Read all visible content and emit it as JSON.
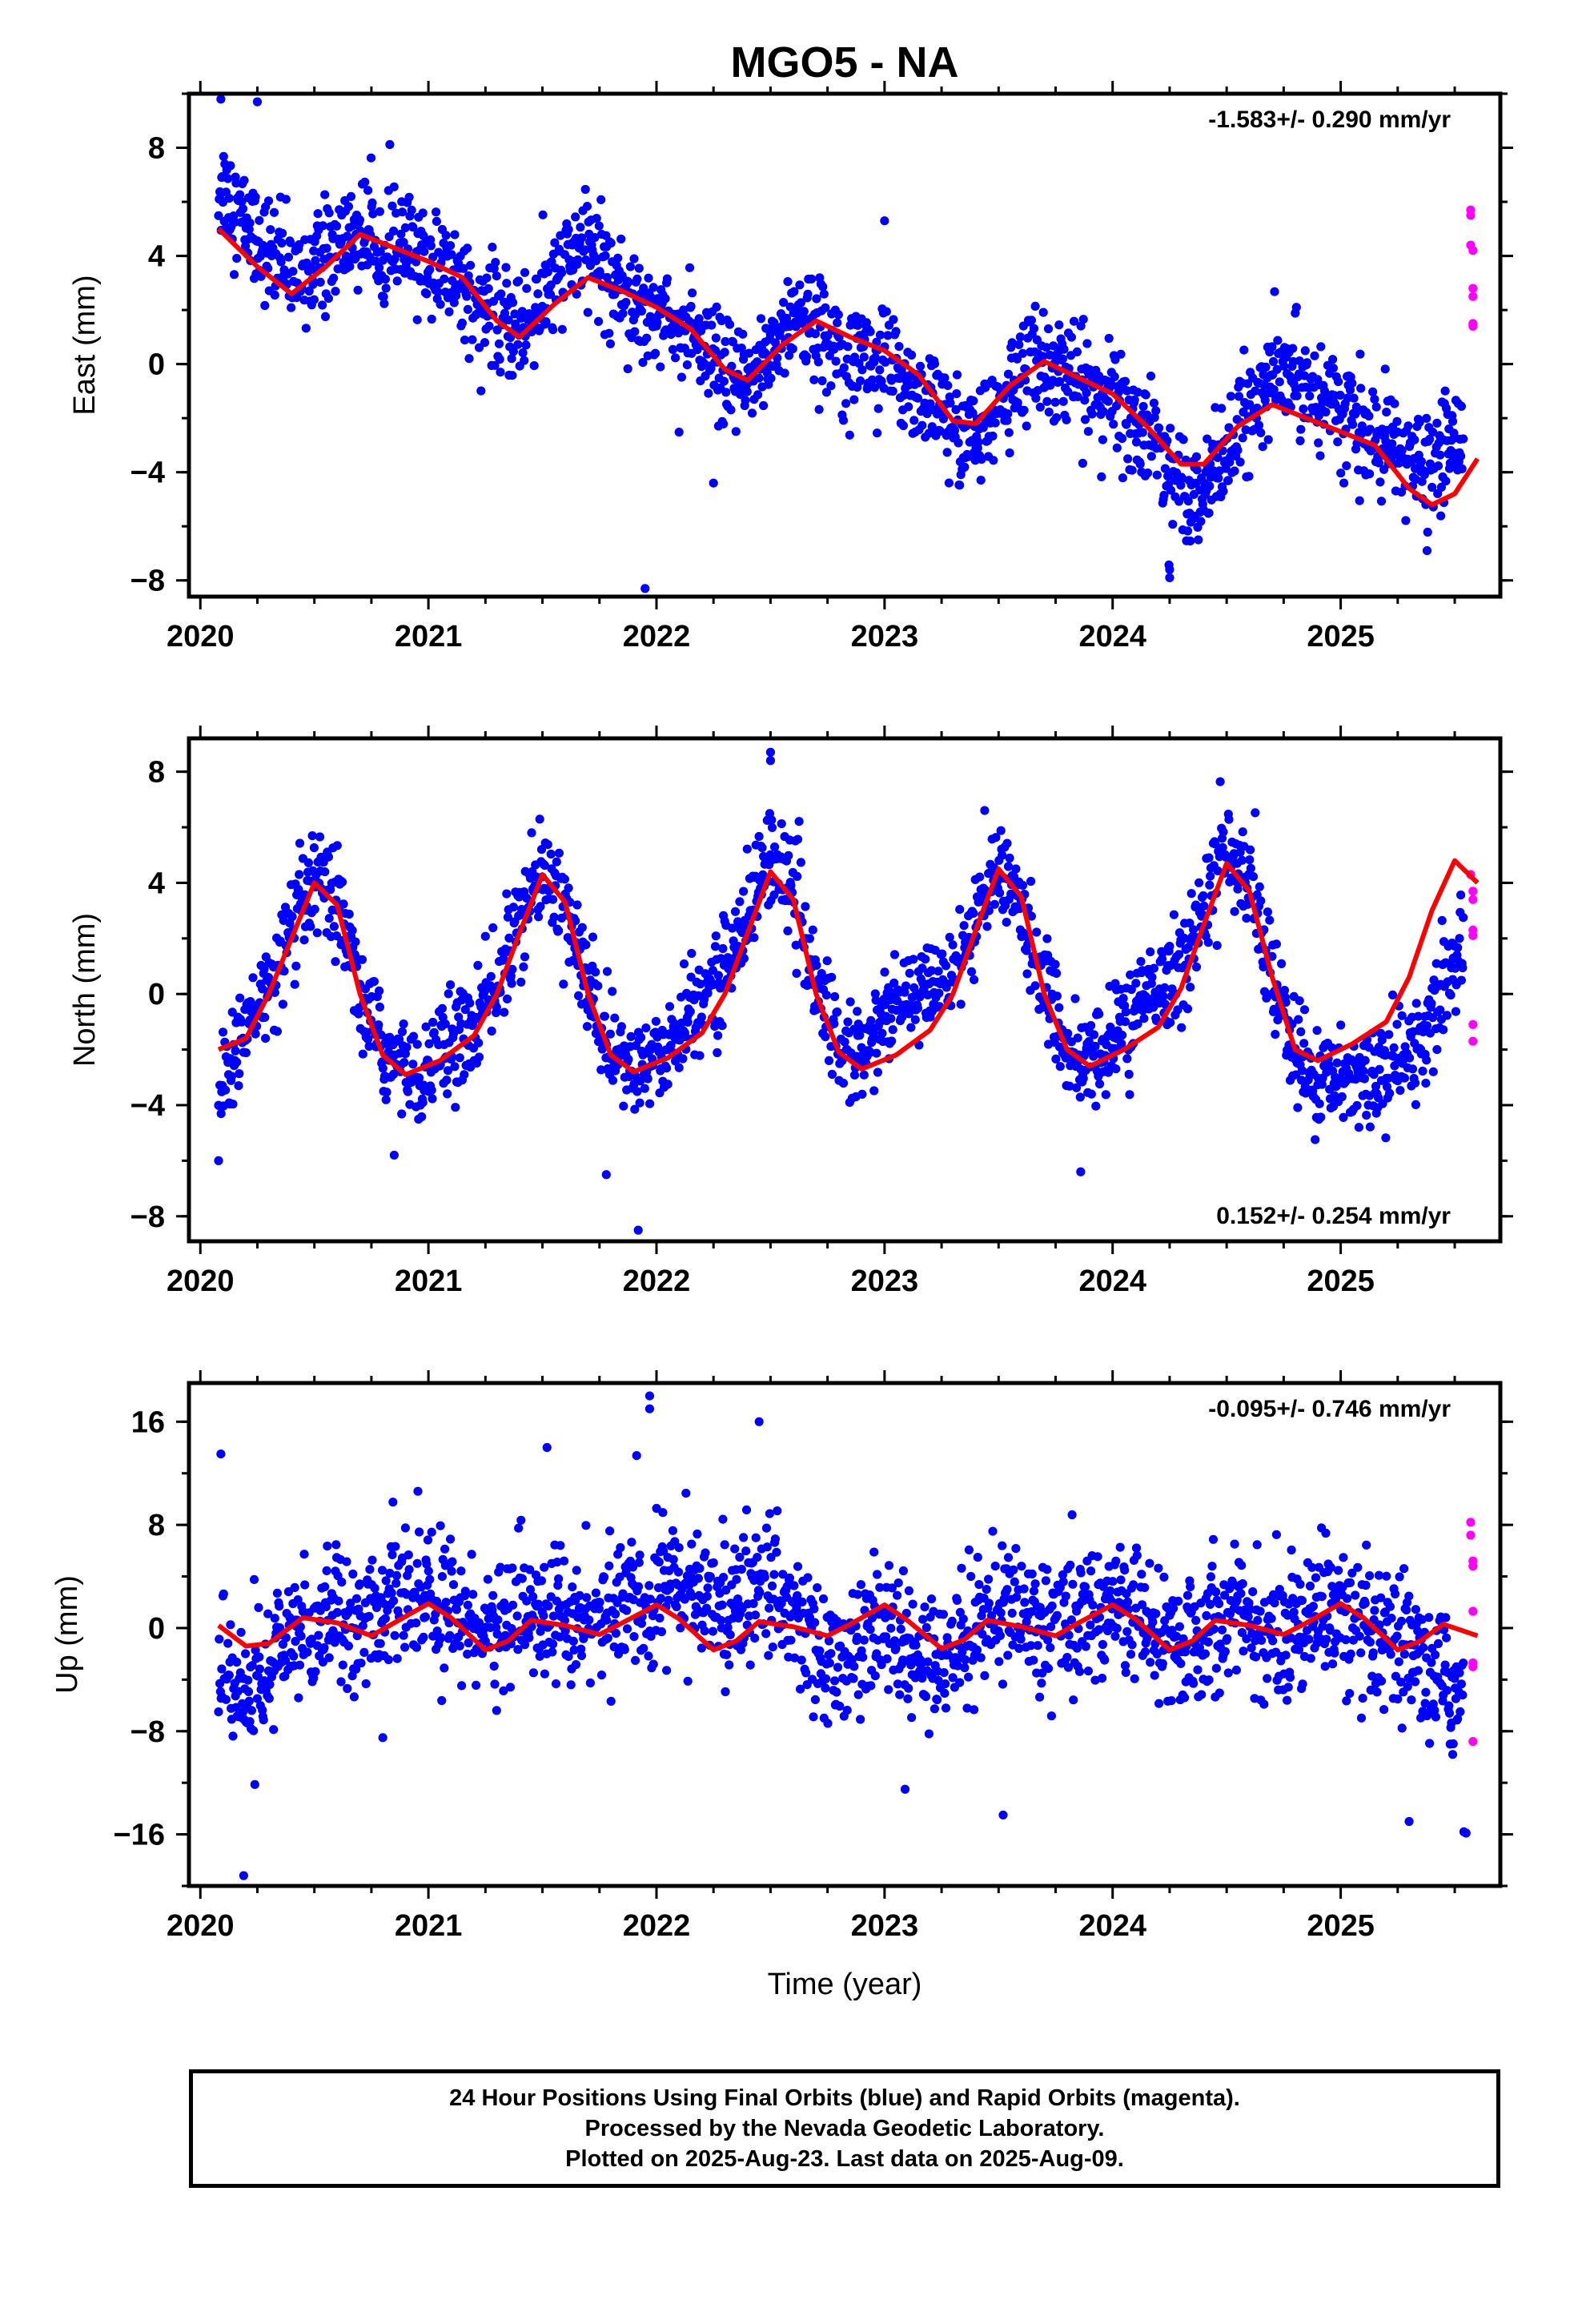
{
  "title": "MGO5 - NA",
  "xlabel": "Time (year)",
  "footer": {
    "line1": "24 Hour Positions Using Final Orbits (blue) and Rapid Orbits (magenta).",
    "line2": "Processed by the Nevada Geodetic Laboratory.",
    "line3": "Plotted on 2025-Aug-23. Last data on 2025-Aug-09."
  },
  "colors": {
    "final": "#0000ff",
    "rapid": "#ff00ff",
    "model": "#ff0000",
    "axes": "#000000"
  },
  "chart_data": [
    {
      "type": "scatter",
      "panel": "east",
      "ylabel": "East (mm)",
      "rate_label": "-1.583+/- 0.290 mm/yr",
      "rate_position": "top-right",
      "xlim": [
        2019.95,
        2025.7
      ],
      "ylim": [
        -8.6,
        10
      ],
      "x_ticks": [
        2020,
        2021,
        2022,
        2023,
        2024,
        2025
      ],
      "y_ticks": [
        -8,
        -4,
        0,
        4,
        8
      ],
      "rate_mm_per_yr": -1.583,
      "rate_sigma_mm_per_yr": 0.29,
      "data_start": 2020.08,
      "data_end": 2025.54,
      "model": {
        "x": [
          2020.08,
          2020.25,
          2020.4,
          2020.55,
          2020.7,
          2020.85,
          2021.0,
          2021.15,
          2021.3,
          2021.4,
          2021.55,
          2021.7,
          2021.85,
          2022.0,
          2022.15,
          2022.3,
          2022.4,
          2022.55,
          2022.7,
          2022.85,
          2023.0,
          2023.15,
          2023.3,
          2023.4,
          2023.55,
          2023.7,
          2023.85,
          2024.0,
          2024.15,
          2024.3,
          2024.4,
          2024.55,
          2024.7,
          2024.85,
          2025.0,
          2025.15,
          2025.3,
          2025.4,
          2025.5,
          2025.6
        ],
        "y": [
          5.0,
          3.6,
          2.6,
          3.6,
          4.8,
          4.3,
          3.8,
          3.2,
          1.6,
          1.0,
          2.2,
          3.2,
          2.7,
          2.1,
          1.3,
          -0.2,
          -0.6,
          0.7,
          1.6,
          1.0,
          0.5,
          -0.4,
          -2.1,
          -2.2,
          -0.8,
          0.1,
          -0.5,
          -1.1,
          -2.3,
          -3.7,
          -3.7,
          -2.3,
          -1.5,
          -2.0,
          -2.5,
          -3.0,
          -4.6,
          -5.2,
          -4.8,
          -3.5
        ]
      },
      "final_points": {
        "x": [
          2020.1,
          2020.2,
          2020.3,
          2020.4,
          2020.5,
          2020.6,
          2020.7,
          2020.8,
          2020.9,
          2021.0,
          2021.1,
          2021.2,
          2021.3,
          2021.4,
          2021.5,
          2021.6,
          2021.7,
          2021.8,
          2021.9,
          2022.0,
          2022.1,
          2022.2,
          2022.3,
          2022.4,
          2022.5,
          2022.6,
          2022.7,
          2022.8,
          2022.9,
          2023.0,
          2023.1,
          2023.2,
          2023.3,
          2023.4,
          2023.5,
          2023.6,
          2023.7,
          2023.8,
          2023.9,
          2024.0,
          2024.1,
          2024.2,
          2024.3,
          2024.4,
          2024.5,
          2024.6,
          2024.7,
          2024.8,
          2024.9,
          2025.0,
          2025.1,
          2025.2,
          2025.3,
          2025.4,
          2025.5
        ],
        "y": [
          6.5,
          5.2,
          4.2,
          3.3,
          3.6,
          4.4,
          4.9,
          4.5,
          4.2,
          3.8,
          3.4,
          2.6,
          1.5,
          1.3,
          2.3,
          3.6,
          4.5,
          3.2,
          2.4,
          2.0,
          1.4,
          0.4,
          -0.5,
          -0.8,
          0.6,
          1.8,
          1.2,
          0.9,
          0.4,
          0.0,
          -0.6,
          -1.4,
          -2.4,
          -2.8,
          -1.6,
          -0.2,
          0.2,
          -0.4,
          -0.9,
          -1.3,
          -2.1,
          -3.2,
          -4.4,
          -4.6,
          -3.3,
          -1.8,
          -0.6,
          -0.4,
          -0.9,
          -1.7,
          -2.6,
          -3.1,
          -3.6,
          -3.9,
          -2.6
        ],
        "spread": 1.3,
        "outliers": {
          "x": [
            2020.09,
            2020.25,
            2021.95,
            2022.25,
            2023.0,
            2024.25,
            2024.25
          ],
          "y": [
            9.8,
            9.7,
            -8.3,
            -4.4,
            5.3,
            -7.9,
            -7.6
          ]
        }
      },
      "rapid_points": {
        "x": [
          2025.57,
          2025.57,
          2025.57,
          2025.58,
          2025.58,
          2025.58,
          2025.58,
          2025.58
        ],
        "y": [
          5.7,
          5.5,
          4.4,
          4.2,
          2.8,
          2.5,
          1.5,
          1.4
        ]
      }
    },
    {
      "type": "scatter",
      "panel": "north",
      "ylabel": "North (mm)",
      "rate_label": "0.152+/- 0.254 mm/yr",
      "rate_position": "bottom-right",
      "xlim": [
        2019.95,
        2025.7
      ],
      "ylim": [
        -8.9,
        9.2
      ],
      "x_ticks": [
        2020,
        2021,
        2022,
        2023,
        2024,
        2025
      ],
      "y_ticks": [
        -8,
        -4,
        0,
        4,
        8
      ],
      "rate_mm_per_yr": 0.152,
      "rate_sigma_mm_per_yr": 0.254,
      "data_start": 2020.08,
      "data_end": 2025.54,
      "model": {
        "x": [
          2020.08,
          2020.2,
          2020.3,
          2020.4,
          2020.5,
          2020.6,
          2020.7,
          2020.8,
          2020.9,
          2021.05,
          2021.2,
          2021.3,
          2021.4,
          2021.5,
          2021.6,
          2021.7,
          2021.8,
          2021.9,
          2022.05,
          2022.2,
          2022.3,
          2022.4,
          2022.5,
          2022.6,
          2022.7,
          2022.8,
          2022.9,
          2023.05,
          2023.2,
          2023.3,
          2023.4,
          2023.5,
          2023.6,
          2023.7,
          2023.8,
          2023.9,
          2024.05,
          2024.2,
          2024.3,
          2024.4,
          2024.5,
          2024.6,
          2024.7,
          2024.8,
          2024.9,
          2025.05,
          2025.2,
          2025.3,
          2025.4,
          2025.5,
          2025.6
        ],
        "y": [
          -2.0,
          -1.6,
          0.0,
          2.0,
          4.0,
          3.2,
          0.0,
          -2.2,
          -2.9,
          -2.4,
          -1.5,
          0.0,
          2.2,
          4.3,
          3.3,
          0.0,
          -2.2,
          -2.8,
          -2.3,
          -1.4,
          0.0,
          2.2,
          4.4,
          3.4,
          0.0,
          -2.1,
          -2.7,
          -2.2,
          -1.3,
          0.0,
          2.3,
          4.5,
          3.5,
          0.0,
          -2.0,
          -2.6,
          -2.0,
          -1.2,
          0.2,
          2.5,
          4.7,
          3.7,
          0.6,
          -2.0,
          -2.4,
          -1.8,
          -1.0,
          0.6,
          3.0,
          4.8,
          4.0
        ]
      },
      "final_points": {
        "x": [
          2020.1,
          2020.2,
          2020.3,
          2020.4,
          2020.5,
          2020.6,
          2020.7,
          2020.8,
          2020.9,
          2021.0,
          2021.1,
          2021.2,
          2021.3,
          2021.4,
          2021.5,
          2021.6,
          2021.7,
          2021.8,
          2021.9,
          2022.0,
          2022.1,
          2022.2,
          2022.3,
          2022.4,
          2022.5,
          2022.6,
          2022.7,
          2022.8,
          2022.9,
          2023.0,
          2023.1,
          2023.2,
          2023.3,
          2023.4,
          2023.5,
          2023.6,
          2023.7,
          2023.8,
          2023.9,
          2024.0,
          2024.1,
          2024.2,
          2024.3,
          2024.4,
          2024.5,
          2024.6,
          2024.7,
          2024.8,
          2024.9,
          2025.0,
          2025.1,
          2025.2,
          2025.3,
          2025.4,
          2025.5
        ],
        "y": [
          -3.0,
          -1.4,
          0.2,
          2.2,
          4.0,
          3.0,
          0.0,
          -2.0,
          -2.8,
          -2.6,
          -1.8,
          -1.2,
          0.4,
          2.6,
          4.6,
          3.3,
          0.2,
          -2.0,
          -2.9,
          -2.4,
          -1.4,
          -0.2,
          1.0,
          2.8,
          5.2,
          3.6,
          0.3,
          -1.7,
          -2.4,
          -0.8,
          -0.4,
          0.2,
          1.0,
          2.6,
          4.6,
          3.2,
          0.1,
          -2.0,
          -2.7,
          -1.6,
          -0.6,
          0.2,
          1.0,
          3.2,
          5.4,
          3.9,
          0.8,
          -2.4,
          -3.2,
          -3.0,
          -2.8,
          -2.6,
          -2.4,
          -0.6,
          1.2
        ],
        "spread": 1.2,
        "outliers": {
          "x": [
            2020.08,
            2020.85,
            2021.78,
            2021.92,
            2022.5,
            2022.5,
            2023.86
          ],
          "y": [
            -6.0,
            -5.8,
            -6.5,
            -8.5,
            8.7,
            8.4,
            -6.4
          ]
        }
      },
      "rapid_points": {
        "x": [
          2025.57,
          2025.58,
          2025.58,
          2025.58,
          2025.58,
          2025.58,
          2025.58
        ],
        "y": [
          4.3,
          3.7,
          3.4,
          2.3,
          2.1,
          -1.1,
          -1.7
        ]
      }
    },
    {
      "type": "scatter",
      "panel": "up",
      "ylabel": "Up (mm)",
      "rate_label": "-0.095+/- 0.746 mm/yr",
      "rate_position": "top-right",
      "xlim": [
        2019.95,
        2025.7
      ],
      "ylim": [
        -20,
        19
      ],
      "x_ticks": [
        2020,
        2021,
        2022,
        2023,
        2024,
        2025
      ],
      "y_ticks": [
        -16,
        -8,
        0,
        8,
        16
      ],
      "rate_mm_per_yr": -0.095,
      "rate_sigma_mm_per_yr": 0.746,
      "data_start": 2020.08,
      "data_end": 2025.54,
      "model": {
        "x": [
          2020.08,
          2020.2,
          2020.3,
          2020.45,
          2020.6,
          2020.75,
          2020.85,
          2021.0,
          2021.1,
          2021.25,
          2021.35,
          2021.45,
          2021.6,
          2021.75,
          2021.85,
          2022.0,
          2022.1,
          2022.25,
          2022.35,
          2022.45,
          2022.6,
          2022.75,
          2022.85,
          2023.0,
          2023.1,
          2023.25,
          2023.35,
          2023.45,
          2023.6,
          2023.75,
          2023.85,
          2024.0,
          2024.1,
          2024.25,
          2024.35,
          2024.45,
          2024.6,
          2024.75,
          2024.85,
          2025.0,
          2025.1,
          2025.25,
          2025.35,
          2025.45,
          2025.6
        ],
        "y": [
          0.2,
          -1.4,
          -1.2,
          0.8,
          0.4,
          -0.6,
          0.4,
          1.9,
          0.8,
          -1.7,
          -1.0,
          0.6,
          0.2,
          -0.5,
          0.4,
          1.8,
          0.7,
          -1.7,
          -1.0,
          0.5,
          0.1,
          -0.6,
          0.3,
          1.8,
          0.6,
          -1.6,
          -0.9,
          0.6,
          0.1,
          -0.6,
          0.4,
          1.8,
          0.7,
          -1.7,
          -1.0,
          0.6,
          0.2,
          -0.5,
          0.4,
          1.9,
          0.8,
          -1.7,
          -1.0,
          0.3,
          -0.6
        ]
      },
      "final_points": {
        "x": [
          2020.1,
          2020.2,
          2020.3,
          2020.4,
          2020.5,
          2020.6,
          2020.7,
          2020.8,
          2020.9,
          2021.0,
          2021.1,
          2021.2,
          2021.3,
          2021.4,
          2021.5,
          2021.6,
          2021.7,
          2021.8,
          2021.9,
          2022.0,
          2022.1,
          2022.2,
          2022.3,
          2022.4,
          2022.5,
          2022.6,
          2022.7,
          2022.8,
          2022.9,
          2023.0,
          2023.1,
          2023.2,
          2023.3,
          2023.4,
          2023.5,
          2023.6,
          2023.7,
          2023.8,
          2023.9,
          2024.0,
          2024.1,
          2024.2,
          2024.3,
          2024.4,
          2024.5,
          2024.6,
          2024.7,
          2024.8,
          2024.9,
          2025.0,
          2025.1,
          2025.2,
          2025.3,
          2025.4,
          2025.5
        ],
        "y": [
          -2.0,
          -6.0,
          -3.0,
          -1.0,
          0.5,
          2.0,
          1.0,
          1.5,
          2.5,
          2.0,
          1.5,
          0.5,
          0.0,
          1.0,
          1.5,
          1.0,
          0.5,
          1.0,
          2.0,
          3.0,
          3.5,
          2.5,
          1.5,
          2.0,
          3.0,
          2.0,
          -2.0,
          -3.0,
          -1.0,
          0.0,
          -2.5,
          -3.0,
          -1.0,
          0.5,
          1.5,
          1.0,
          0.0,
          1.0,
          1.5,
          2.0,
          1.0,
          -1.0,
          -1.5,
          0.0,
          1.5,
          0.5,
          -1.0,
          0.5,
          1.5,
          1.0,
          -1.0,
          -1.5,
          -2.5,
          -3.5,
          -5.0
        ],
        "spread": 3.5,
        "outliers": {
          "x": [
            2020.09,
            2020.19,
            2021.52,
            2021.97,
            2021.97,
            2022.45,
            2023.09,
            2023.52,
            2025.3,
            2025.54,
            2025.55,
            2020.8
          ],
          "y": [
            13.5,
            -19.2,
            14.0,
            18.0,
            17.0,
            16.0,
            -12.5,
            -14.5,
            -15.0,
            -15.8,
            -15.9,
            -8.5
          ]
        }
      },
      "rapid_points": {
        "x": [
          2025.57,
          2025.57,
          2025.58,
          2025.58,
          2025.58,
          2025.58,
          2025.58,
          2025.58
        ],
        "y": [
          8.2,
          7.2,
          5.2,
          4.8,
          1.3,
          -2.7,
          -3.0,
          -8.8
        ]
      }
    }
  ]
}
